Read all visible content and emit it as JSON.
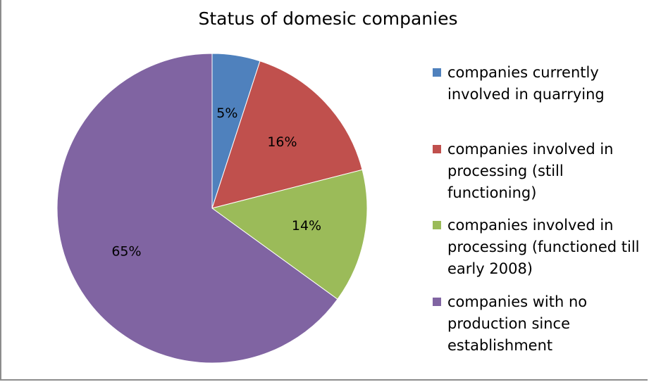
{
  "chart_data": {
    "type": "pie",
    "title": "Status of domesic companies",
    "slices": [
      {
        "label": "companies currently involved in quarrying",
        "value": 5,
        "value_label": "5%",
        "color": "#4f81bd"
      },
      {
        "label": "companies involved in processing (still functioning)",
        "value": 16,
        "value_label": "16%",
        "color": "#c0504d"
      },
      {
        "label": "companies involved in processing (functioned till early 2008)",
        "value": 14,
        "value_label": "14%",
        "color": "#9bbb59"
      },
      {
        "label": "companies with no production since establishment",
        "value": 65,
        "value_label": "65%",
        "color": "#8064a2"
      }
    ],
    "legend_position": "right",
    "start_angle": "12 o'clock",
    "direction": "clockwise"
  },
  "legend": {
    "lines": [
      [
        "companies currently",
        "involved in quarrying"
      ],
      [
        "companies involved in",
        "processing (still",
        "functioning)"
      ],
      [
        "companies involved in",
        "processing (functioned till",
        "early 2008)"
      ],
      [
        "companies with no",
        "production since",
        "establishment"
      ]
    ]
  }
}
